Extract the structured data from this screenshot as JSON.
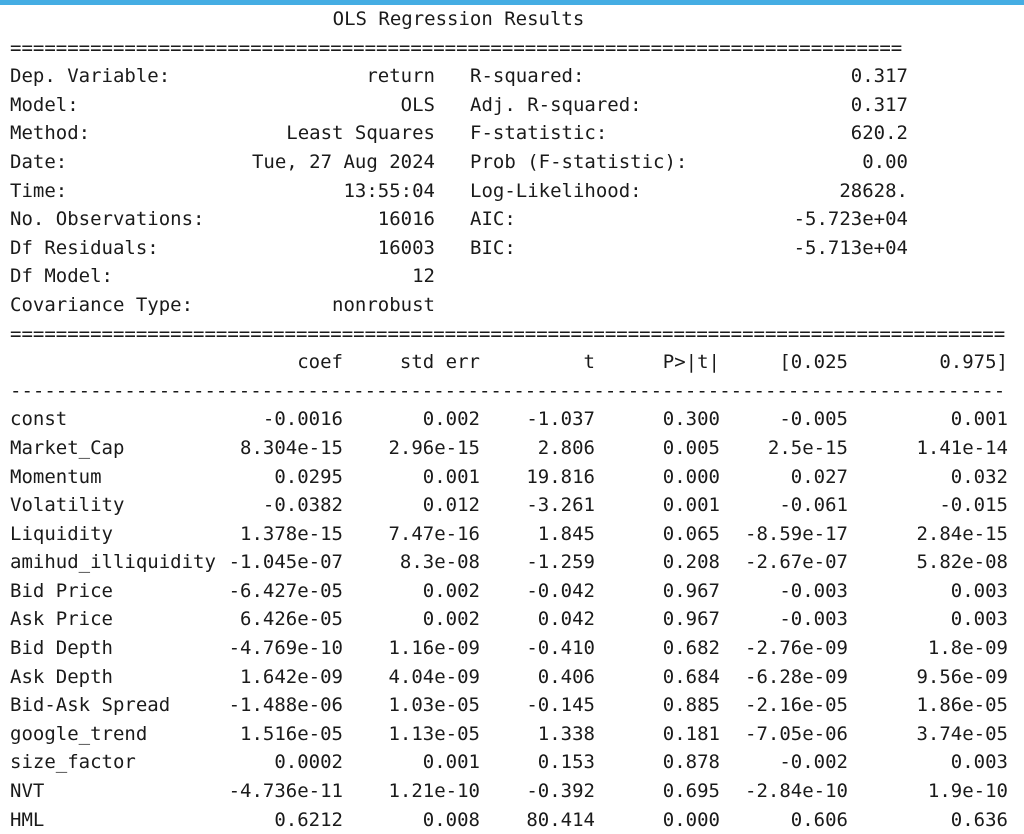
{
  "colors": {
    "accent_bar": "#45ade3",
    "text": "#1a1a1a"
  },
  "title": "OLS Regression Results",
  "separators": {
    "top": "==============================================================================",
    "mid": "=======================================================================================",
    "dash": "---------------------------------------------------------------------------------------"
  },
  "info": {
    "left": [
      {
        "label": "Dep. Variable:",
        "value": "return"
      },
      {
        "label": "Model:",
        "value": "OLS"
      },
      {
        "label": "Method:",
        "value": "Least Squares"
      },
      {
        "label": "Date:",
        "value": "Tue, 27 Aug 2024"
      },
      {
        "label": "Time:",
        "value": "13:55:04"
      },
      {
        "label": "No. Observations:",
        "value": "16016"
      },
      {
        "label": "Df Residuals:",
        "value": "16003"
      },
      {
        "label": "Df Model:",
        "value": "12"
      },
      {
        "label": "Covariance Type:",
        "value": "nonrobust"
      }
    ],
    "right": [
      {
        "label": "R-squared:",
        "value": "0.317"
      },
      {
        "label": "Adj. R-squared:",
        "value": "0.317"
      },
      {
        "label": "F-statistic:",
        "value": "620.2"
      },
      {
        "label": "Prob (F-statistic):",
        "value": "0.00"
      },
      {
        "label": "Log-Likelihood:",
        "value": "28628."
      },
      {
        "label": "AIC:",
        "value": "-5.723e+04"
      },
      {
        "label": "BIC:",
        "value": "-5.713e+04"
      }
    ]
  },
  "coef_table": {
    "headers": {
      "name": "",
      "coef": "coef",
      "std_err": "std err",
      "t": "t",
      "p": "P>|t|",
      "ci_low": "[0.025",
      "ci_high": "0.975]"
    },
    "rows": [
      {
        "name": "const",
        "coef": "-0.0016",
        "std_err": "0.002",
        "t": "-1.037",
        "p": "0.300",
        "ci_low": "-0.005",
        "ci_high": "0.001"
      },
      {
        "name": "Market_Cap",
        "coef": "8.304e-15",
        "std_err": "2.96e-15",
        "t": "2.806",
        "p": "0.005",
        "ci_low": "2.5e-15",
        "ci_high": "1.41e-14"
      },
      {
        "name": "Momentum",
        "coef": "0.0295",
        "std_err": "0.001",
        "t": "19.816",
        "p": "0.000",
        "ci_low": "0.027",
        "ci_high": "0.032"
      },
      {
        "name": "Volatility",
        "coef": "-0.0382",
        "std_err": "0.012",
        "t": "-3.261",
        "p": "0.001",
        "ci_low": "-0.061",
        "ci_high": "-0.015"
      },
      {
        "name": "Liquidity",
        "coef": "1.378e-15",
        "std_err": "7.47e-16",
        "t": "1.845",
        "p": "0.065",
        "ci_low": "-8.59e-17",
        "ci_high": "2.84e-15"
      },
      {
        "name": "amihud_illiquidity",
        "coef": "-1.045e-07",
        "std_err": "8.3e-08",
        "t": "-1.259",
        "p": "0.208",
        "ci_low": "-2.67e-07",
        "ci_high": "5.82e-08"
      },
      {
        "name": "Bid Price",
        "coef": "-6.427e-05",
        "std_err": "0.002",
        "t": "-0.042",
        "p": "0.967",
        "ci_low": "-0.003",
        "ci_high": "0.003"
      },
      {
        "name": "Ask Price",
        "coef": "6.426e-05",
        "std_err": "0.002",
        "t": "0.042",
        "p": "0.967",
        "ci_low": "-0.003",
        "ci_high": "0.003"
      },
      {
        "name": "Bid Depth",
        "coef": "-4.769e-10",
        "std_err": "1.16e-09",
        "t": "-0.410",
        "p": "0.682",
        "ci_low": "-2.76e-09",
        "ci_high": "1.8e-09"
      },
      {
        "name": "Ask Depth",
        "coef": "1.642e-09",
        "std_err": "4.04e-09",
        "t": "0.406",
        "p": "0.684",
        "ci_low": "-6.28e-09",
        "ci_high": "9.56e-09"
      },
      {
        "name": "Bid-Ask Spread",
        "coef": "-1.488e-06",
        "std_err": "1.03e-05",
        "t": "-0.145",
        "p": "0.885",
        "ci_low": "-2.16e-05",
        "ci_high": "1.86e-05"
      },
      {
        "name": "google_trend",
        "coef": "1.516e-05",
        "std_err": "1.13e-05",
        "t": "1.338",
        "p": "0.181",
        "ci_low": "-7.05e-06",
        "ci_high": "3.74e-05"
      },
      {
        "name": "size_factor",
        "coef": "0.0002",
        "std_err": "0.001",
        "t": "0.153",
        "p": "0.878",
        "ci_low": "-0.002",
        "ci_high": "0.003"
      },
      {
        "name": "NVT",
        "coef": "-4.736e-11",
        "std_err": "1.21e-10",
        "t": "-0.392",
        "p": "0.695",
        "ci_low": "-2.84e-10",
        "ci_high": "1.9e-10"
      },
      {
        "name": "HML",
        "coef": "0.6212",
        "std_err": "0.008",
        "t": "80.414",
        "p": "0.000",
        "ci_low": "0.606",
        "ci_high": "0.636"
      }
    ]
  }
}
